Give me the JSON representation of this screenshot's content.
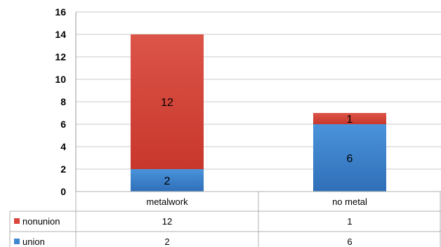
{
  "chart_data": {
    "type": "bar",
    "stacked": true,
    "categories": [
      "metalwork",
      "no metal"
    ],
    "series": [
      {
        "name": "union",
        "values": [
          2,
          6
        ],
        "color": "#3f86cf"
      },
      {
        "name": "nonunion",
        "values": [
          12,
          1
        ],
        "color": "#d9473c"
      }
    ],
    "ylim": [
      0,
      16
    ],
    "yticks": [
      0,
      2,
      4,
      6,
      8,
      10,
      12,
      14,
      16
    ],
    "grid": true,
    "data_table": true,
    "table_rows": [
      {
        "legend": "nonunion",
        "values": [
          "12",
          "1"
        ]
      },
      {
        "legend": "union",
        "values": [
          "2",
          "6"
        ]
      }
    ],
    "title": "",
    "xlabel": "",
    "ylabel": ""
  }
}
